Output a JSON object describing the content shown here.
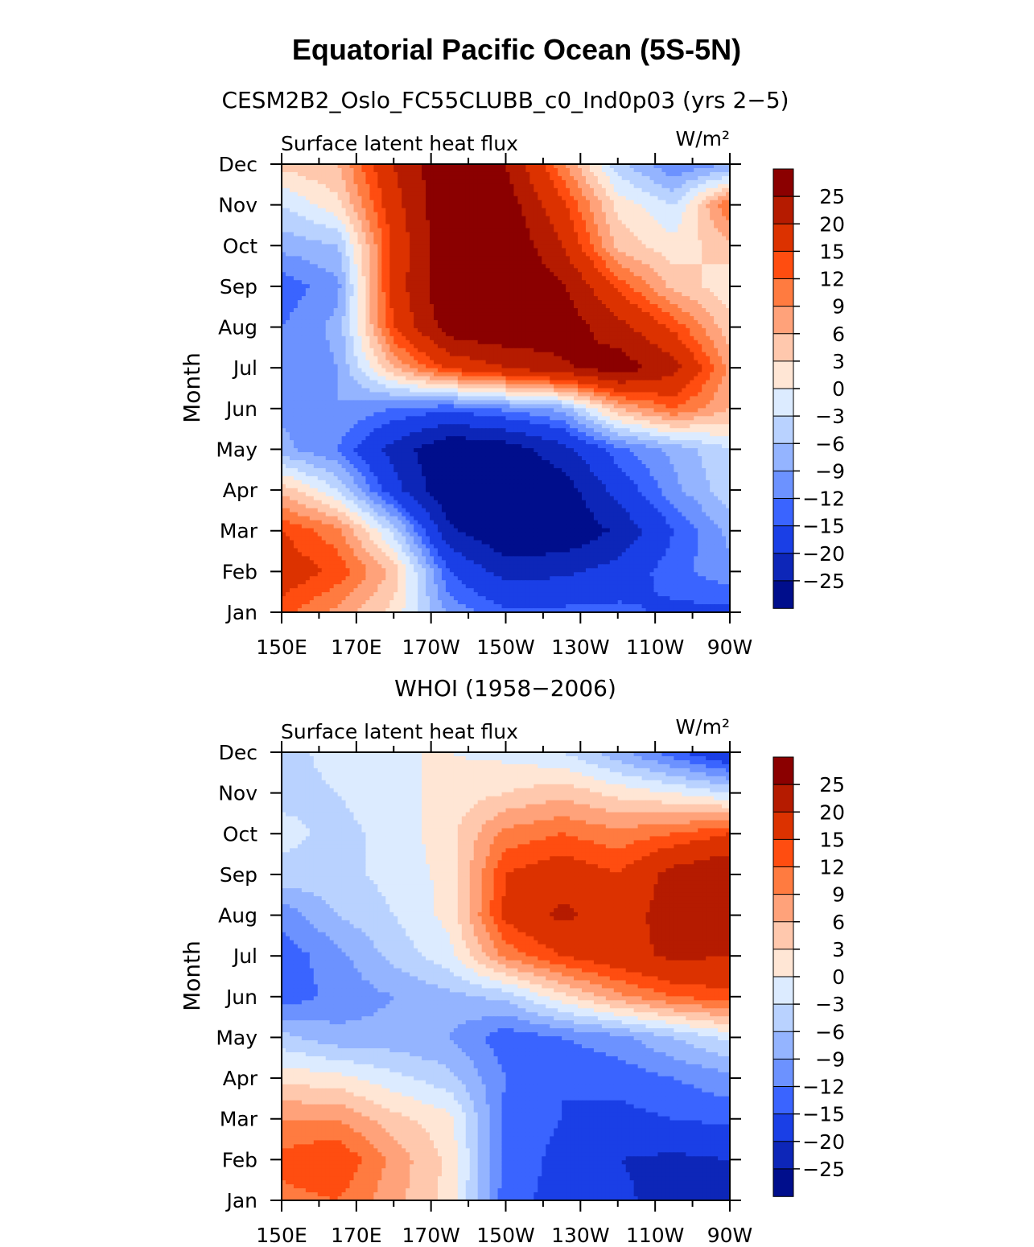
{
  "title": "Equatorial Pacific Ocean (5S-5N)",
  "colorbar": {
    "labels": [
      "25",
      "20",
      "15",
      "12",
      "9",
      "6",
      "3",
      "0",
      "−3",
      "−6",
      "−9",
      "−12",
      "−15",
      "−20",
      "−25"
    ],
    "colors": [
      "#8b0000",
      "#b51b00",
      "#dc3200",
      "#ff4d10",
      "#ff7b40",
      "#ffa27a",
      "#ffc8ad",
      "#ffe6d5",
      "#dcebff",
      "#b9d2ff",
      "#94b4ff",
      "#6c92ff",
      "#3a64ff",
      "#1a3fe6",
      "#0d26b8",
      "#000e8c"
    ]
  },
  "chart_data": [
    {
      "type": "heatmap",
      "title": "CESM2B2_Oslo_FC55CLUBB_c0_Ind0p03 (yrs 2−5)",
      "left_label": "Surface latent heat flux",
      "units": "W/m²",
      "ylabel": "Month",
      "xlabel": "",
      "xticks": [
        "150E",
        "170E",
        "170W",
        "150W",
        "130W",
        "110W",
        "90W"
      ],
      "xlim": [
        150,
        270
      ],
      "yticks": [
        "Jan",
        "Feb",
        "Mar",
        "Apr",
        "May",
        "Jun",
        "Jul",
        "Aug",
        "Sep",
        "Oct",
        "Nov",
        "Dec"
      ],
      "levels": [
        -25,
        -20,
        -15,
        -12,
        -9,
        -6,
        -3,
        0,
        3,
        6,
        9,
        12,
        15,
        20,
        25
      ],
      "x": [
        150,
        165,
        180,
        195,
        210,
        225,
        240,
        255,
        270
      ],
      "z": [
        [
          13,
          8,
          2,
          -10,
          -14,
          -14,
          -14,
          -16,
          -16
        ],
        [
          18,
          14,
          5,
          -15,
          -22,
          -21,
          -18,
          -13,
          -10
        ],
        [
          15,
          10,
          -4,
          -24,
          -30,
          -30,
          -24,
          -15,
          -8
        ],
        [
          5,
          -3,
          -18,
          -30,
          -30,
          -28,
          -18,
          -10,
          -4
        ],
        [
          -8,
          -12,
          -22,
          -30,
          -28,
          -22,
          -13,
          -8,
          -3
        ],
        [
          -10,
          -9,
          -12,
          -14,
          -11,
          -8,
          6,
          12,
          6
        ],
        [
          -12,
          -9,
          6,
          16,
          20,
          24,
          28,
          22,
          8
        ],
        [
          -12,
          -8,
          15,
          28,
          30,
          28,
          22,
          14,
          4
        ],
        [
          -14,
          -10,
          17,
          30,
          30,
          26,
          14,
          5,
          1
        ],
        [
          -8,
          -6,
          16,
          30,
          30,
          20,
          5,
          1,
          5
        ],
        [
          -3,
          2,
          18,
          30,
          28,
          16,
          2,
          -3,
          12
        ],
        [
          4,
          6,
          20,
          30,
          25,
          10,
          -5,
          -12,
          -9
        ]
      ]
    },
    {
      "type": "heatmap",
      "title": "WHOI (1958−2006)",
      "left_label": "Surface latent heat flux",
      "units": "W/m²",
      "ylabel": "Month",
      "xlabel": "",
      "xticks": [
        "150E",
        "170E",
        "170W",
        "150W",
        "130W",
        "110W",
        "90W"
      ],
      "xlim": [
        150,
        270
      ],
      "yticks": [
        "Jan",
        "Feb",
        "Mar",
        "Apr",
        "May",
        "Jun",
        "Jul",
        "Aug",
        "Sep",
        "Oct",
        "Nov",
        "Dec"
      ],
      "levels": [
        -25,
        -20,
        -15,
        -12,
        -9,
        -6,
        -3,
        0,
        3,
        6,
        9,
        12,
        15,
        20,
        25
      ],
      "x": [
        150,
        165,
        180,
        195,
        210,
        225,
        240,
        255,
        270
      ],
      "z": [
        [
          11,
          12,
          7,
          2,
          -14,
          -16,
          -19,
          -22,
          -24
        ],
        [
          13,
          15,
          8,
          2,
          -13,
          -16,
          -20,
          -21,
          -20
        ],
        [
          9,
          9,
          4,
          1,
          -13,
          -15,
          -16,
          -15,
          -14
        ],
        [
          2,
          1,
          -2,
          -5,
          -12,
          -15,
          -14,
          -12,
          -10
        ],
        [
          -5,
          -8,
          -8,
          -9,
          -14,
          -12,
          -10,
          -6,
          -2
        ],
        [
          -14,
          -11,
          -9,
          -7,
          -5,
          2,
          8,
          12,
          14
        ],
        [
          -14,
          -10,
          -5,
          -1,
          10,
          15,
          18,
          21,
          20
        ],
        [
          -11,
          -6,
          -3,
          1,
          16,
          21,
          18,
          22,
          23
        ],
        [
          -4,
          -4,
          -2,
          1,
          15,
          18,
          15,
          22,
          25
        ],
        [
          -2,
          -4,
          -2,
          2,
          10,
          12,
          10,
          12,
          15
        ],
        [
          -4,
          -3,
          -1,
          1,
          3,
          5,
          2,
          0,
          -3
        ],
        [
          -4,
          -2,
          0,
          0,
          -1,
          -3,
          -8,
          -14,
          -20
        ]
      ]
    }
  ]
}
